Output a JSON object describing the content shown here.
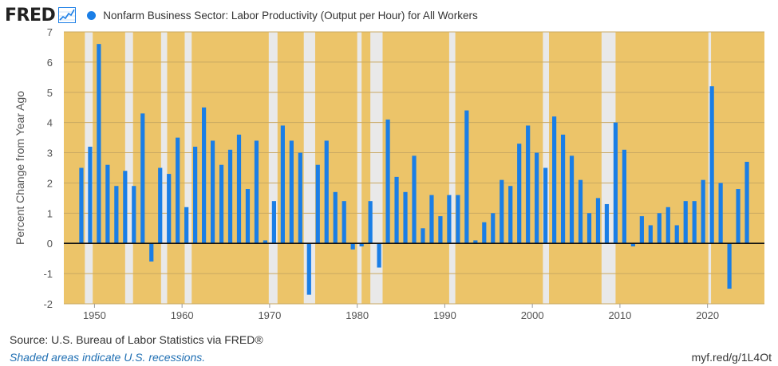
{
  "header": {
    "logo": "FRED",
    "icon": "line-chart-icon",
    "series_title": "Nonfarm Business Sector: Labor Productivity (Output per Hour) for All Workers"
  },
  "colors": {
    "bar": "#1a7ee6",
    "recession_shade": "#e9e9e9",
    "plot_bg": "#ecc469",
    "grid": "#c9a862",
    "zero_line": "#111111",
    "axis_text": "#555555",
    "note": "#1f6fb3"
  },
  "footer": {
    "source": "Source: U.S. Bureau of Labor Statistics via FRED®",
    "note": "Shaded areas indicate U.S. recessions.",
    "url": "myf.red/g/1L4Ot"
  },
  "chart_data": {
    "type": "bar",
    "title": "Nonfarm Business Sector: Labor Productivity (Output per Hour) for All Workers",
    "xlabel": "",
    "ylabel": "Percent Change from Year Ago",
    "ylim": [
      -2,
      7
    ],
    "xlim": [
      1946.5,
      2026.5
    ],
    "grid": true,
    "yticks": [
      -2,
      -1,
      0,
      1,
      2,
      3,
      4,
      5,
      6,
      7
    ],
    "xticks": [
      1950,
      1960,
      1970,
      1980,
      1990,
      2000,
      2010,
      2020
    ],
    "recessions": [
      [
        1948.9,
        1949.8
      ],
      [
        1953.5,
        1954.4
      ],
      [
        1957.6,
        1958.3
      ],
      [
        1960.3,
        1961.1
      ],
      [
        1969.9,
        1970.9
      ],
      [
        1973.9,
        1975.2
      ],
      [
        1980.0,
        1980.5
      ],
      [
        1981.5,
        1982.9
      ],
      [
        1990.5,
        1991.2
      ],
      [
        2001.2,
        2001.9
      ],
      [
        2007.9,
        2009.5
      ],
      [
        2020.1,
        2020.4
      ]
    ],
    "x": [
      1948,
      1949,
      1950,
      1951,
      1952,
      1953,
      1954,
      1955,
      1956,
      1957,
      1958,
      1959,
      1960,
      1961,
      1962,
      1963,
      1964,
      1965,
      1966,
      1967,
      1968,
      1969,
      1970,
      1971,
      1972,
      1973,
      1974,
      1975,
      1976,
      1977,
      1978,
      1979,
      1980,
      1981,
      1982,
      1983,
      1984,
      1985,
      1986,
      1987,
      1988,
      1989,
      1990,
      1991,
      1992,
      1993,
      1994,
      1995,
      1996,
      1997,
      1998,
      1999,
      2000,
      2001,
      2002,
      2003,
      2004,
      2005,
      2006,
      2007,
      2008,
      2009,
      2010,
      2011,
      2012,
      2013,
      2014,
      2015,
      2016,
      2017,
      2018,
      2019,
      2020,
      2021,
      2022,
      2023,
      2024
    ],
    "values": [
      2.5,
      3.2,
      6.6,
      2.6,
      1.9,
      2.4,
      1.9,
      4.3,
      -0.6,
      2.5,
      2.3,
      3.5,
      1.2,
      3.2,
      4.5,
      3.4,
      2.6,
      3.1,
      3.6,
      1.8,
      3.4,
      0.1,
      1.4,
      3.9,
      3.4,
      3.0,
      -1.7,
      2.6,
      3.4,
      1.7,
      1.4,
      -0.2,
      -0.1,
      1.4,
      -0.8,
      4.1,
      2.2,
      1.7,
      2.9,
      0.5,
      1.6,
      0.9,
      1.6,
      1.6,
      4.4,
      0.1,
      0.7,
      1.0,
      2.1,
      1.9,
      3.3,
      3.9,
      3.0,
      2.5,
      4.2,
      3.6,
      2.9,
      2.1,
      1.0,
      1.5,
      1.3,
      4.0,
      3.1,
      -0.1,
      0.9,
      0.6,
      1.0,
      1.2,
      0.6,
      1.4,
      1.4,
      2.1,
      5.2,
      2.0,
      -1.5,
      1.8,
      2.7
    ]
  }
}
